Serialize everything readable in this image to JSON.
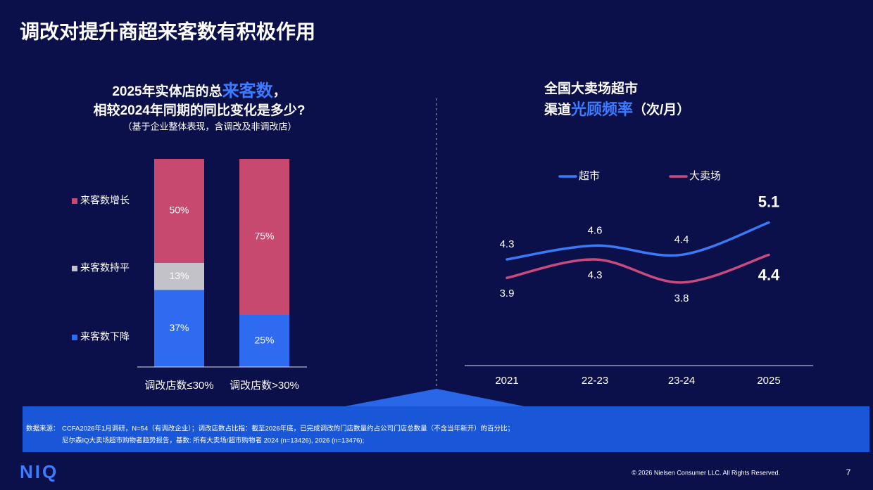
{
  "title": "调改对提升商超来客数有积极作用",
  "chart_data": [
    {
      "type": "stacked-bar",
      "title_lines": [
        [
          {
            "text": "2025年实体店的总"
          },
          {
            "text": "来客数",
            "highlight": true
          },
          {
            "text": "，"
          }
        ],
        [
          {
            "text": "相较2024年同期的同比变化是多少?"
          }
        ]
      ],
      "subtitle": "（基于企业整体表现，含调改及非调改店）",
      "categories": [
        "调改店数≤30%",
        "调改店数>30%"
      ],
      "series": [
        {
          "name": "来客数下降",
          "color": "#2f6bf0",
          "values": [
            37,
            25
          ],
          "value_labels": [
            "37%",
            "25%"
          ]
        },
        {
          "name": "来客数持平",
          "color": "#c2c2c8",
          "values": [
            13,
            null
          ],
          "value_labels": [
            "13%",
            null
          ]
        },
        {
          "name": "来客数增长",
          "color": "#c8496f",
          "values": [
            50,
            75
          ],
          "value_labels": [
            "50%",
            "75%"
          ]
        }
      ],
      "ylim": [
        0,
        100
      ],
      "legend": "left"
    },
    {
      "type": "line",
      "title_lines": [
        [
          {
            "text": "全国大卖场超市"
          }
        ],
        [
          {
            "text": "渠道"
          },
          {
            "text": "光顾频率",
            "highlight": true
          },
          {
            "text": "（次/月）"
          }
        ]
      ],
      "categories": [
        "2021",
        "22-23",
        "23-24",
        "2025"
      ],
      "series": [
        {
          "name": "超市",
          "color": "#3a7bf5",
          "values": [
            4.3,
            4.6,
            4.4,
            5.1
          ]
        },
        {
          "name": "大卖场",
          "color": "#c84b7e",
          "values": [
            3.9,
            4.3,
            3.8,
            4.4
          ]
        }
      ],
      "ylim": [
        2,
        6.25
      ],
      "legend": "top",
      "highlight_color": "#3d7bff"
    }
  ],
  "footnote": {
    "label": "数据来源：",
    "lines": [
      "CCFA2026年1月调研，N=54（有调改企业）；调改店数占比指：截至2026年底，已完成调改的门店数量约占公司门店总数量（不含当年新开）的百分比；",
      "尼尔森IQ大卖场超市购物者趋势报告，基数: 所有大卖场/超市购物者 2024 (n=13426), 2026 (n=13476);"
    ]
  },
  "logo": "NIQ",
  "copyright": "© 2026 Nielsen Consumer LLC. All Rights Reserved.",
  "page_number": "7"
}
